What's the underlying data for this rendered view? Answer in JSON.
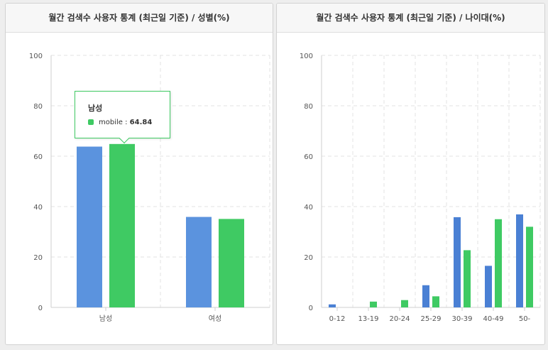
{
  "colors": {
    "pc": "#5b93de",
    "mobile": "#3fca63"
  },
  "chart_data": [
    {
      "type": "bar",
      "title": "월간 검색수 사용자 통계 (최근일 기준) / 성별(%)",
      "categories": [
        "남성",
        "여성"
      ],
      "series": [
        {
          "name": "",
          "color": "#5b93de",
          "values": [
            63.8,
            35.9
          ]
        },
        {
          "name": "mobile",
          "color": "#3fca63",
          "values": [
            64.84,
            35.1
          ]
        }
      ],
      "ylim": [
        0,
        100
      ],
      "yticks": [
        "0",
        "20",
        "40",
        "60",
        "80",
        "100"
      ],
      "grid": true,
      "tooltip": {
        "title": "남성",
        "series": "mobile",
        "separator": ":",
        "value": "64.84"
      }
    },
    {
      "type": "bar",
      "title": "월간 검색수 사용자 통계 (최근일 기준) / 나이대(%)",
      "categories": [
        "0-12",
        "13-19",
        "20-24",
        "25-29",
        "30-39",
        "40-49",
        "50-"
      ],
      "series": [
        {
          "name": "",
          "color": "#4a80d4",
          "values": [
            1.2,
            0,
            0,
            8.8,
            35.8,
            16.5,
            36.9
          ]
        },
        {
          "name": "",
          "color": "#3fca63",
          "values": [
            0,
            2.3,
            2.9,
            4.4,
            22.7,
            35.0,
            32.0
          ]
        }
      ],
      "ylim": [
        0,
        100
      ],
      "yticks": [
        "0",
        "20",
        "40",
        "60",
        "80",
        "100"
      ],
      "grid": true
    }
  ]
}
